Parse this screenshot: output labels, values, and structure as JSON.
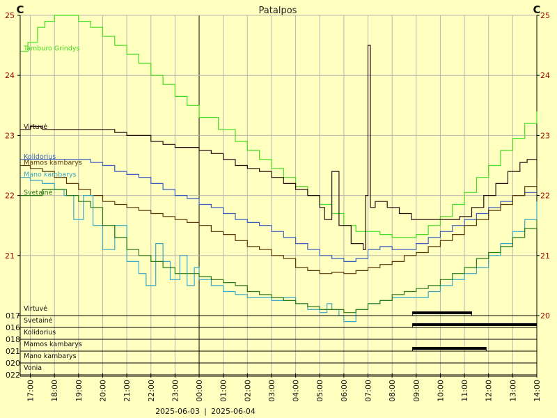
{
  "chart_data": {
    "type": "line",
    "title": "Patalpos",
    "ylabel_left": "C",
    "ylabel_right": "C",
    "ylim": [
      20,
      25
    ],
    "y_ticks": [
      "20",
      "21",
      "22",
      "23",
      "24",
      "25"
    ],
    "x_start": 16.58,
    "x_end": 38.0,
    "x_ticks": [
      "17:00",
      "18:00",
      "19:00",
      "20:00",
      "21:00",
      "22:00",
      "23:00",
      "00:00",
      "01:00",
      "02:00",
      "03:00",
      "04:00",
      "05:00",
      "06:00",
      "07:00",
      "08:00",
      "09:00",
      "10:00",
      "11:00",
      "12:00",
      "13:00",
      "14:00"
    ],
    "date_labels": [
      "2025-06-03",
      "2025-06-04"
    ],
    "date_separator": "|",
    "midnight_hour": 24,
    "grid": true,
    "series": [
      {
        "name": "Tamburo Grindys",
        "color": "#44dd22",
        "points": [
          [
            16.6,
            24.4
          ],
          [
            16.9,
            24.55
          ],
          [
            17.3,
            24.8
          ],
          [
            17.6,
            24.9
          ],
          [
            18.0,
            25.0
          ],
          [
            18.5,
            25.0
          ],
          [
            19.0,
            24.9
          ],
          [
            19.5,
            24.8
          ],
          [
            20.0,
            24.65
          ],
          [
            20.5,
            24.5
          ],
          [
            21.0,
            24.35
          ],
          [
            21.5,
            24.2
          ],
          [
            22.0,
            24.0
          ],
          [
            22.5,
            23.85
          ],
          [
            23.0,
            23.65
          ],
          [
            23.5,
            23.5
          ],
          [
            24.0,
            23.3
          ],
          [
            24.8,
            23.1
          ],
          [
            25.5,
            22.9
          ],
          [
            26.0,
            22.75
          ],
          [
            26.5,
            22.6
          ],
          [
            27.0,
            22.45
          ],
          [
            27.5,
            22.3
          ],
          [
            28.0,
            22.15
          ],
          [
            28.5,
            22.0
          ],
          [
            29.0,
            21.85
          ],
          [
            29.5,
            21.7
          ],
          [
            30.0,
            21.5
          ],
          [
            30.5,
            21.4
          ],
          [
            31.0,
            21.4
          ],
          [
            31.5,
            21.35
          ],
          [
            32.0,
            21.3
          ],
          [
            32.5,
            21.3
          ],
          [
            33.0,
            21.35
          ],
          [
            33.5,
            21.5
          ],
          [
            34.0,
            21.65
          ],
          [
            34.5,
            21.85
          ],
          [
            35.0,
            22.05
          ],
          [
            35.5,
            22.3
          ],
          [
            36.0,
            22.5
          ],
          [
            36.5,
            22.75
          ],
          [
            37.0,
            22.95
          ],
          [
            37.5,
            23.2
          ],
          [
            38.0,
            23.4
          ]
        ]
      },
      {
        "name": "Virtuvė",
        "color": "#2a0d14",
        "points": [
          [
            16.6,
            23.1
          ],
          [
            17.0,
            23.15
          ],
          [
            17.5,
            23.1
          ],
          [
            18.0,
            23.1
          ],
          [
            18.5,
            23.1
          ],
          [
            19.0,
            23.1
          ],
          [
            19.5,
            23.1
          ],
          [
            20.0,
            23.1
          ],
          [
            20.5,
            23.05
          ],
          [
            21.0,
            23.0
          ],
          [
            21.5,
            23.0
          ],
          [
            22.0,
            22.9
          ],
          [
            22.5,
            22.85
          ],
          [
            23.0,
            22.8
          ],
          [
            23.5,
            22.8
          ],
          [
            24.0,
            22.75
          ],
          [
            24.5,
            22.7
          ],
          [
            25.0,
            22.6
          ],
          [
            25.5,
            22.5
          ],
          [
            26.0,
            22.45
          ],
          [
            26.5,
            22.4
          ],
          [
            27.0,
            22.3
          ],
          [
            27.5,
            22.2
          ],
          [
            28.0,
            22.1
          ],
          [
            28.5,
            22.0
          ],
          [
            29.0,
            21.8
          ],
          [
            29.2,
            21.6
          ],
          [
            29.5,
            22.4
          ],
          [
            29.8,
            21.5
          ],
          [
            30.3,
            21.2
          ],
          [
            30.8,
            21.1
          ],
          [
            30.9,
            22.0
          ],
          [
            31.0,
            24.5
          ],
          [
            31.1,
            21.8
          ],
          [
            31.3,
            21.9
          ],
          [
            31.8,
            21.8
          ],
          [
            32.3,
            21.7
          ],
          [
            32.8,
            21.6
          ],
          [
            33.3,
            21.6
          ],
          [
            33.8,
            21.6
          ],
          [
            34.3,
            21.6
          ],
          [
            34.8,
            21.65
          ],
          [
            35.3,
            21.8
          ],
          [
            35.8,
            22.0
          ],
          [
            36.3,
            22.2
          ],
          [
            36.8,
            22.4
          ],
          [
            37.3,
            22.55
          ],
          [
            37.6,
            22.6
          ],
          [
            38.0,
            22.6
          ]
        ]
      },
      {
        "name": "Kolidorius",
        "color": "#3a5ec0",
        "points": [
          [
            16.6,
            22.6
          ],
          [
            17.5,
            22.6
          ],
          [
            18.5,
            22.6
          ],
          [
            19.5,
            22.55
          ],
          [
            20.0,
            22.5
          ],
          [
            20.5,
            22.4
          ],
          [
            21.0,
            22.35
          ],
          [
            21.5,
            22.3
          ],
          [
            22.0,
            22.2
          ],
          [
            22.5,
            22.1
          ],
          [
            23.0,
            22.0
          ],
          [
            23.5,
            21.95
          ],
          [
            24.0,
            21.85
          ],
          [
            24.5,
            21.8
          ],
          [
            25.0,
            21.7
          ],
          [
            25.5,
            21.6
          ],
          [
            26.0,
            21.55
          ],
          [
            26.5,
            21.5
          ],
          [
            27.0,
            21.4
          ],
          [
            27.5,
            21.3
          ],
          [
            28.0,
            21.2
          ],
          [
            28.5,
            21.1
          ],
          [
            29.0,
            21.0
          ],
          [
            29.5,
            20.95
          ],
          [
            30.0,
            20.9
          ],
          [
            30.5,
            20.95
          ],
          [
            31.0,
            21.1
          ],
          [
            31.5,
            21.15
          ],
          [
            32.0,
            21.1
          ],
          [
            32.5,
            21.1
          ],
          [
            33.0,
            21.2
          ],
          [
            33.5,
            21.3
          ],
          [
            34.0,
            21.4
          ],
          [
            34.5,
            21.5
          ],
          [
            35.0,
            21.6
          ],
          [
            35.5,
            21.7
          ],
          [
            36.0,
            21.8
          ],
          [
            36.5,
            21.9
          ],
          [
            37.0,
            22.0
          ],
          [
            37.5,
            22.05
          ],
          [
            38.0,
            22.05
          ]
        ]
      },
      {
        "name": "Mamos kambarys",
        "color": "#5a3808",
        "points": [
          [
            16.6,
            22.5
          ],
          [
            17.0,
            22.45
          ],
          [
            17.5,
            22.4
          ],
          [
            18.0,
            22.3
          ],
          [
            18.5,
            22.2
          ],
          [
            19.0,
            22.1
          ],
          [
            19.5,
            22.0
          ],
          [
            20.0,
            21.9
          ],
          [
            20.5,
            21.85
          ],
          [
            21.0,
            21.8
          ],
          [
            21.5,
            21.75
          ],
          [
            22.0,
            21.7
          ],
          [
            22.5,
            21.65
          ],
          [
            23.0,
            21.6
          ],
          [
            23.5,
            21.55
          ],
          [
            24.0,
            21.5
          ],
          [
            24.5,
            21.4
          ],
          [
            25.0,
            21.35
          ],
          [
            25.5,
            21.25
          ],
          [
            26.0,
            21.15
          ],
          [
            26.5,
            21.1
          ],
          [
            27.0,
            21.0
          ],
          [
            27.5,
            20.95
          ],
          [
            28.0,
            20.8
          ],
          [
            28.5,
            20.75
          ],
          [
            29.0,
            20.7
          ],
          [
            29.5,
            20.72
          ],
          [
            30.0,
            20.7
          ],
          [
            30.5,
            20.75
          ],
          [
            31.0,
            20.8
          ],
          [
            31.5,
            20.85
          ],
          [
            32.0,
            20.9
          ],
          [
            32.5,
            21.0
          ],
          [
            33.0,
            21.05
          ],
          [
            33.5,
            21.15
          ],
          [
            34.0,
            21.25
          ],
          [
            34.5,
            21.35
          ],
          [
            35.0,
            21.5
          ],
          [
            35.5,
            21.6
          ],
          [
            36.0,
            21.75
          ],
          [
            36.5,
            21.85
          ],
          [
            37.0,
            22.0
          ],
          [
            37.5,
            22.15
          ],
          [
            38.0,
            22.3
          ]
        ]
      },
      {
        "name": "Mano kambarys",
        "color": "#3aa8c8",
        "points": [
          [
            16.6,
            22.3
          ],
          [
            17.0,
            22.25
          ],
          [
            17.5,
            22.2
          ],
          [
            18.0,
            22.1
          ],
          [
            18.4,
            22.0
          ],
          [
            18.8,
            21.6
          ],
          [
            19.2,
            22.0
          ],
          [
            19.6,
            21.5
          ],
          [
            20.0,
            21.1
          ],
          [
            20.5,
            21.5
          ],
          [
            21.0,
            20.9
          ],
          [
            21.5,
            20.7
          ],
          [
            21.8,
            20.5
          ],
          [
            22.2,
            21.2
          ],
          [
            22.5,
            20.9
          ],
          [
            22.8,
            20.6
          ],
          [
            23.2,
            21.0
          ],
          [
            23.5,
            20.5
          ],
          [
            23.8,
            20.8
          ],
          [
            24.0,
            20.6
          ],
          [
            24.5,
            20.5
          ],
          [
            25.0,
            20.4
          ],
          [
            25.5,
            20.35
          ],
          [
            26.0,
            20.3
          ],
          [
            26.5,
            20.3
          ],
          [
            27.0,
            20.25
          ],
          [
            27.5,
            20.3
          ],
          [
            28.0,
            20.2
          ],
          [
            28.5,
            20.1
          ],
          [
            29.0,
            20.05
          ],
          [
            29.3,
            20.2
          ],
          [
            29.5,
            20.1
          ],
          [
            29.8,
            20.0
          ],
          [
            30.0,
            19.9
          ],
          [
            30.5,
            20.1
          ],
          [
            31.0,
            20.2
          ],
          [
            31.5,
            20.25
          ],
          [
            32.0,
            20.3
          ],
          [
            32.5,
            20.3
          ],
          [
            33.0,
            20.3
          ],
          [
            33.5,
            20.4
          ],
          [
            34.0,
            20.5
          ],
          [
            34.5,
            20.6
          ],
          [
            35.0,
            20.7
          ],
          [
            35.5,
            20.8
          ],
          [
            36.0,
            21.0
          ],
          [
            36.5,
            21.2
          ],
          [
            37.0,
            21.4
          ],
          [
            37.5,
            21.6
          ],
          [
            38.0,
            21.9
          ]
        ]
      },
      {
        "name": "Svetainė",
        "color": "#2a7a1a",
        "points": [
          [
            16.6,
            22.0
          ],
          [
            17.0,
            22.0
          ],
          [
            17.5,
            22.1
          ],
          [
            18.0,
            22.1
          ],
          [
            18.5,
            22.0
          ],
          [
            19.0,
            21.9
          ],
          [
            19.5,
            21.8
          ],
          [
            20.0,
            21.5
          ],
          [
            20.5,
            21.3
          ],
          [
            21.0,
            21.1
          ],
          [
            21.5,
            21.0
          ],
          [
            22.0,
            20.9
          ],
          [
            22.5,
            20.8
          ],
          [
            23.0,
            20.7
          ],
          [
            23.5,
            20.7
          ],
          [
            24.0,
            20.65
          ],
          [
            24.5,
            20.6
          ],
          [
            25.0,
            20.55
          ],
          [
            25.5,
            20.5
          ],
          [
            26.0,
            20.4
          ],
          [
            26.5,
            20.35
          ],
          [
            27.0,
            20.3
          ],
          [
            27.5,
            20.25
          ],
          [
            28.0,
            20.2
          ],
          [
            28.5,
            20.15
          ],
          [
            29.0,
            20.1
          ],
          [
            29.5,
            20.1
          ],
          [
            30.0,
            20.05
          ],
          [
            30.5,
            20.1
          ],
          [
            31.0,
            20.2
          ],
          [
            31.5,
            20.25
          ],
          [
            32.0,
            20.35
          ],
          [
            32.5,
            20.4
          ],
          [
            33.0,
            20.45
          ],
          [
            33.5,
            20.5
          ],
          [
            34.0,
            20.6
          ],
          [
            34.5,
            20.7
          ],
          [
            35.0,
            20.8
          ],
          [
            35.5,
            20.95
          ],
          [
            36.0,
            21.05
          ],
          [
            36.5,
            21.15
          ],
          [
            37.0,
            21.3
          ],
          [
            37.5,
            21.45
          ],
          [
            38.0,
            21.6
          ]
        ]
      }
    ],
    "heating_zones": [
      {
        "name": "Virtuvė",
        "code": "017",
        "on": [
          [
            32.85,
            35.3
          ]
        ]
      },
      {
        "name": "Svetainė",
        "code": "016",
        "on": [
          [
            32.85,
            38.0
          ]
        ]
      },
      {
        "name": "Kolidorius",
        "code": "018",
        "on": []
      },
      {
        "name": "Mamos kambarys",
        "code": "021",
        "on": [
          [
            32.85,
            35.9
          ]
        ]
      },
      {
        "name": "Mano kambarys",
        "code": "020",
        "on": []
      },
      {
        "name": "Vonia",
        "code": "022",
        "on": []
      }
    ]
  }
}
